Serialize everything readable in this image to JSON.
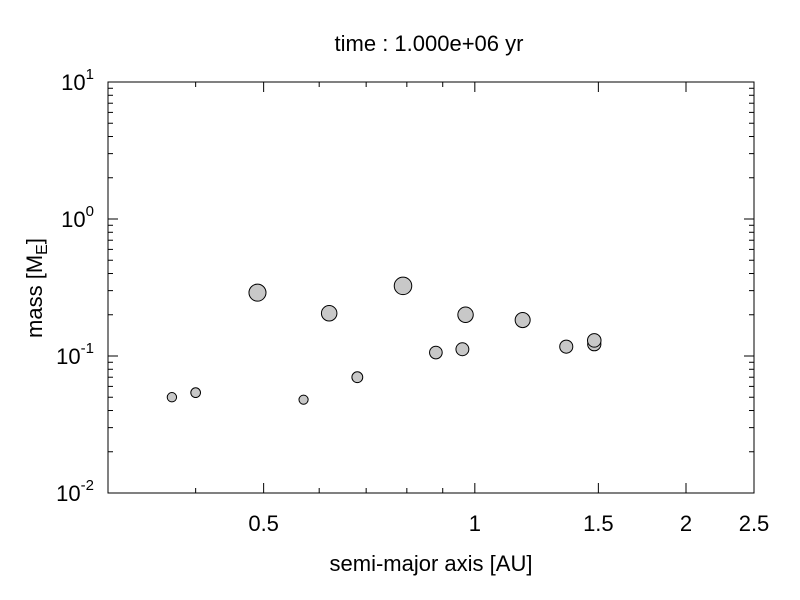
{
  "chart_data": {
    "type": "scatter",
    "title": "time : 1.000e+06 yr",
    "xlabel": "semi-major axis [AU]",
    "ylabel": "mass [M",
    "ylabel_subscript": "E",
    "ylabel_suffix": "]",
    "x_scale": "log",
    "y_scale": "log",
    "xlim": [
      0.3,
      2.5
    ],
    "ylim": [
      0.01,
      10
    ],
    "x_ticks": [
      {
        "value": 0.5,
        "label": "0.5"
      },
      {
        "value": 1,
        "label": "1"
      },
      {
        "value": 1.5,
        "label": "1.5"
      },
      {
        "value": 2,
        "label": "2"
      },
      {
        "value": 2.5,
        "label": "2.5"
      }
    ],
    "y_ticks": [
      {
        "value": 0.01,
        "base": "10",
        "exp": "-2"
      },
      {
        "value": 0.1,
        "base": "10",
        "exp": "-1"
      },
      {
        "value": 1,
        "base": "10",
        "exp": "0"
      },
      {
        "value": 10,
        "base": "10",
        "exp": "1"
      }
    ],
    "grid": false,
    "marker_color": "#c8c8c8",
    "marker_edge_color": "#000000",
    "points": [
      {
        "x": 0.37,
        "y": 0.05
      },
      {
        "x": 0.4,
        "y": 0.054
      },
      {
        "x": 0.49,
        "y": 0.29
      },
      {
        "x": 0.57,
        "y": 0.048
      },
      {
        "x": 0.62,
        "y": 0.205
      },
      {
        "x": 0.68,
        "y": 0.07
      },
      {
        "x": 0.79,
        "y": 0.325
      },
      {
        "x": 0.88,
        "y": 0.106
      },
      {
        "x": 0.96,
        "y": 0.112
      },
      {
        "x": 0.97,
        "y": 0.2
      },
      {
        "x": 1.17,
        "y": 0.183
      },
      {
        "x": 1.35,
        "y": 0.117
      },
      {
        "x": 1.48,
        "y": 0.122
      },
      {
        "x": 1.48,
        "y": 0.13
      }
    ]
  }
}
